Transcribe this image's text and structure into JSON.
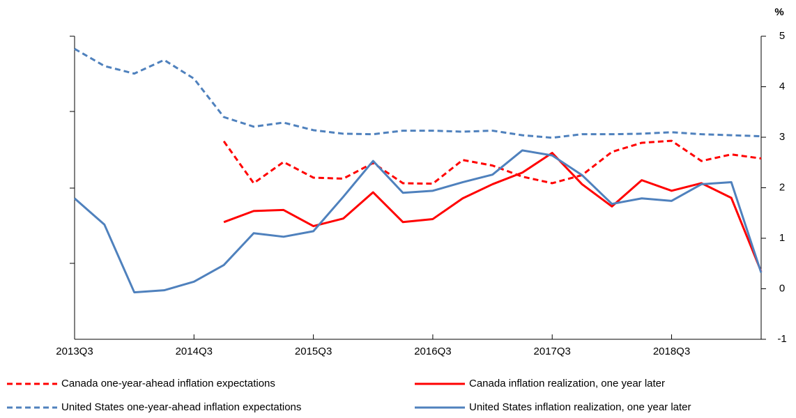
{
  "chart_data": {
    "type": "line",
    "ylabel": "%",
    "categories": [
      "2013Q3",
      null,
      null,
      null,
      "2014Q3",
      null,
      null,
      null,
      "2015Q3",
      null,
      null,
      null,
      "2016Q3",
      null,
      null,
      null,
      "2017Q3",
      null,
      null,
      null,
      "2018Q3",
      null,
      null,
      null
    ],
    "series": [
      {
        "name": "Canada one-year-ahead inflation expectations",
        "color": "#ff0000",
        "dashed": true,
        "values": [
          null,
          null,
          null,
          null,
          null,
          2.92,
          2.09,
          2.51,
          2.2,
          2.18,
          2.49,
          2.09,
          2.08,
          2.55,
          2.44,
          2.22,
          2.09,
          2.25,
          2.71,
          2.89,
          2.93,
          2.53,
          2.66,
          2.58
        ]
      },
      {
        "name": "Canada inflation realization, one year later",
        "color": "#ff0000",
        "dashed": false,
        "values": [
          null,
          null,
          null,
          null,
          null,
          1.32,
          1.54,
          1.56,
          1.24,
          1.39,
          1.91,
          1.32,
          1.38,
          1.79,
          2.07,
          2.3,
          2.69,
          2.07,
          1.63,
          2.15,
          1.94,
          2.09,
          1.8,
          0.34
        ]
      },
      {
        "name": "United States one-year-ahead inflation expectations",
        "color": "#4f81bd",
        "dashed": true,
        "values": [
          4.75,
          4.41,
          4.26,
          4.53,
          4.16,
          3.4,
          3.21,
          3.29,
          3.14,
          3.07,
          3.06,
          3.13,
          3.13,
          3.11,
          3.13,
          3.04,
          2.99,
          3.06,
          3.06,
          3.07,
          3.1,
          3.06,
          3.04,
          3.02
        ]
      },
      {
        "name": "United States inflation realization, one year later",
        "color": "#4f81bd",
        "dashed": false,
        "values": [
          1.79,
          1.27,
          -0.07,
          -0.03,
          0.14,
          0.47,
          1.1,
          1.03,
          1.14,
          1.82,
          2.53,
          1.9,
          1.94,
          2.11,
          2.26,
          2.74,
          2.64,
          2.25,
          1.68,
          1.79,
          1.74,
          2.07,
          2.11,
          0.32
        ]
      }
    ],
    "ylim": [
      -1,
      5
    ],
    "yticks": [
      -1,
      0,
      1,
      2,
      3,
      4,
      5
    ],
    "y_axis_side": "right",
    "legend": "bottom",
    "grid": false
  }
}
